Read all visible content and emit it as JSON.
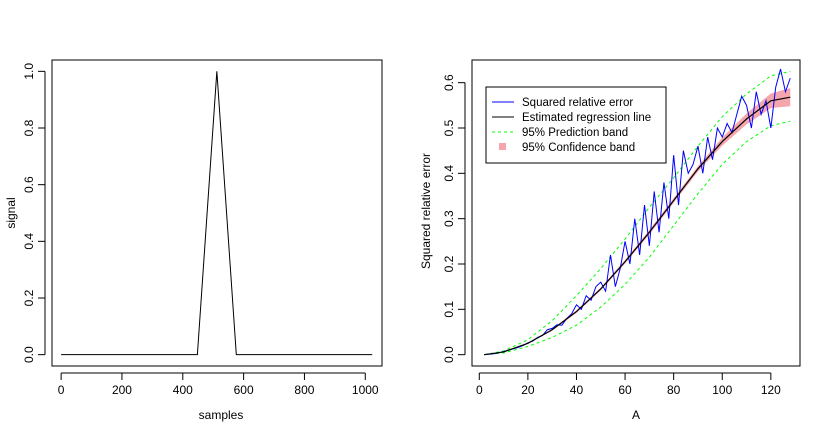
{
  "chart_data": [
    {
      "type": "line",
      "xlabel": "samples",
      "ylabel": "signal",
      "xlim": [
        -30,
        1055
      ],
      "ylim": [
        -0.04,
        1.04
      ],
      "xticks": [
        "0",
        "200",
        "400",
        "600",
        "800",
        "1000"
      ],
      "yticks": [
        "0.0",
        "0.2",
        "0.4",
        "0.6",
        "0.8",
        "1.0"
      ],
      "series": [
        {
          "name": "signal",
          "x": [
            0,
            448,
            512,
            576,
            1023
          ],
          "y": [
            0,
            0,
            1,
            0,
            0
          ]
        }
      ]
    },
    {
      "type": "line",
      "xlabel": "A",
      "ylabel": "Squared relative error",
      "xlim": [
        -3,
        132
      ],
      "ylim": [
        -0.025,
        0.65
      ],
      "xticks": [
        "0",
        "20",
        "40",
        "60",
        "80",
        "100",
        "120"
      ],
      "yticks": [
        "0.0",
        "0.1",
        "0.2",
        "0.3",
        "0.4",
        "0.5",
        "0.6"
      ],
      "legend": {
        "position": "top-left",
        "entries": [
          "Squared relative error",
          "Estimated regression line",
          "95% Prediction band",
          "95% Confidence band"
        ]
      },
      "colors": {
        "error": "#0000ff",
        "regression": "#000000",
        "prediction": "#00ff00",
        "confidence": "#f4a6ac"
      },
      "series": [
        {
          "name": "Estimated regression line",
          "x": [
            2,
            10,
            20,
            30,
            40,
            50,
            60,
            70,
            80,
            90,
            100,
            110,
            120,
            128
          ],
          "y": [
            0.0,
            0.006,
            0.025,
            0.055,
            0.095,
            0.145,
            0.205,
            0.27,
            0.34,
            0.41,
            0.47,
            0.52,
            0.56,
            0.568
          ]
        },
        {
          "name": "95% Prediction band upper",
          "x": [
            2,
            10,
            20,
            30,
            40,
            50,
            60,
            70,
            80,
            90,
            100,
            110,
            120,
            128
          ],
          "y": [
            0.0,
            0.008,
            0.033,
            0.075,
            0.13,
            0.19,
            0.255,
            0.325,
            0.39,
            0.46,
            0.525,
            0.575,
            0.615,
            0.625
          ]
        },
        {
          "name": "95% Prediction band lower",
          "x": [
            2,
            10,
            20,
            30,
            40,
            50,
            60,
            70,
            80,
            90,
            100,
            110,
            120,
            128
          ],
          "y": [
            0.0,
            0.004,
            0.018,
            0.038,
            0.065,
            0.105,
            0.155,
            0.215,
            0.285,
            0.355,
            0.42,
            0.47,
            0.505,
            0.515
          ]
        },
        {
          "name": "95% Confidence band upper",
          "x": [
            2,
            10,
            20,
            30,
            40,
            50,
            60,
            70,
            80,
            90,
            100,
            110,
            120,
            128
          ],
          "y": [
            0.0,
            0.0065,
            0.026,
            0.057,
            0.098,
            0.148,
            0.209,
            0.275,
            0.345,
            0.416,
            0.479,
            0.532,
            0.576,
            0.588
          ]
        },
        {
          "name": "95% Confidence band lower",
          "x": [
            2,
            10,
            20,
            30,
            40,
            50,
            60,
            70,
            80,
            90,
            100,
            110,
            120,
            128
          ],
          "y": [
            0.0,
            0.0055,
            0.024,
            0.053,
            0.092,
            0.142,
            0.201,
            0.265,
            0.335,
            0.404,
            0.461,
            0.508,
            0.544,
            0.548
          ]
        },
        {
          "name": "Squared relative error",
          "x": [
            2,
            4,
            6,
            8,
            10,
            12,
            14,
            16,
            18,
            20,
            22,
            24,
            26,
            28,
            30,
            32,
            34,
            36,
            38,
            40,
            42,
            44,
            46,
            48,
            50,
            52,
            54,
            56,
            58,
            60,
            62,
            64,
            66,
            68,
            70,
            72,
            74,
            76,
            78,
            80,
            82,
            84,
            86,
            88,
            90,
            92,
            94,
            96,
            98,
            100,
            102,
            104,
            106,
            108,
            110,
            112,
            114,
            116,
            118,
            120,
            122,
            124,
            126,
            128
          ],
          "y": [
            0.0,
            0.001,
            0.002,
            0.004,
            0.007,
            0.01,
            0.013,
            0.016,
            0.02,
            0.026,
            0.03,
            0.038,
            0.042,
            0.055,
            0.058,
            0.066,
            0.065,
            0.08,
            0.09,
            0.11,
            0.1,
            0.13,
            0.12,
            0.15,
            0.16,
            0.14,
            0.22,
            0.15,
            0.19,
            0.25,
            0.2,
            0.3,
            0.22,
            0.33,
            0.24,
            0.36,
            0.27,
            0.38,
            0.3,
            0.44,
            0.33,
            0.45,
            0.4,
            0.42,
            0.46,
            0.4,
            0.48,
            0.43,
            0.5,
            0.48,
            0.51,
            0.49,
            0.53,
            0.57,
            0.55,
            0.5,
            0.58,
            0.53,
            0.56,
            0.5,
            0.59,
            0.63,
            0.58,
            0.61
          ]
        }
      ]
    }
  ]
}
